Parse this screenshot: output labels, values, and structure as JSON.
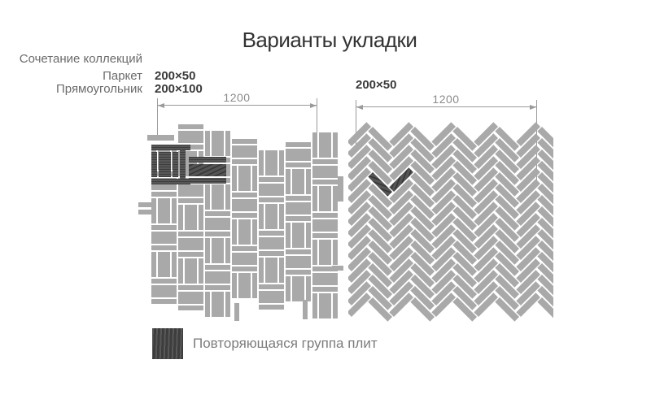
{
  "page": {
    "title": "Варианты укладки"
  },
  "combo_block": {
    "heading": "Сочетание коллекций",
    "rows": [
      {
        "collection": "Паркет",
        "size": "200×50"
      },
      {
        "collection": "Прямоугольник",
        "size": "200×100"
      }
    ]
  },
  "right_block": {
    "size": "200×50"
  },
  "dimensions": {
    "left_width": "1200",
    "right_width": "1200"
  },
  "legend": {
    "label": "Повторяющаяся группа плит"
  },
  "patterns": {
    "left": {
      "type": "basketweave-parquet",
      "tiles": [
        "200×50",
        "200×100"
      ],
      "span_mm": "1200"
    },
    "right": {
      "type": "herringbone-45",
      "tiles": [
        "200×50"
      ],
      "span_mm": "1200"
    }
  },
  "colors": {
    "tile": "#a9a9a9",
    "tile_dark": "#585858",
    "hatch_line": "#3d3d3d",
    "dim_line": "#9a9a9a",
    "text_dark": "#333333",
    "text_gray": "#6b6b6b",
    "text_dim": "#8b8b8b"
  }
}
